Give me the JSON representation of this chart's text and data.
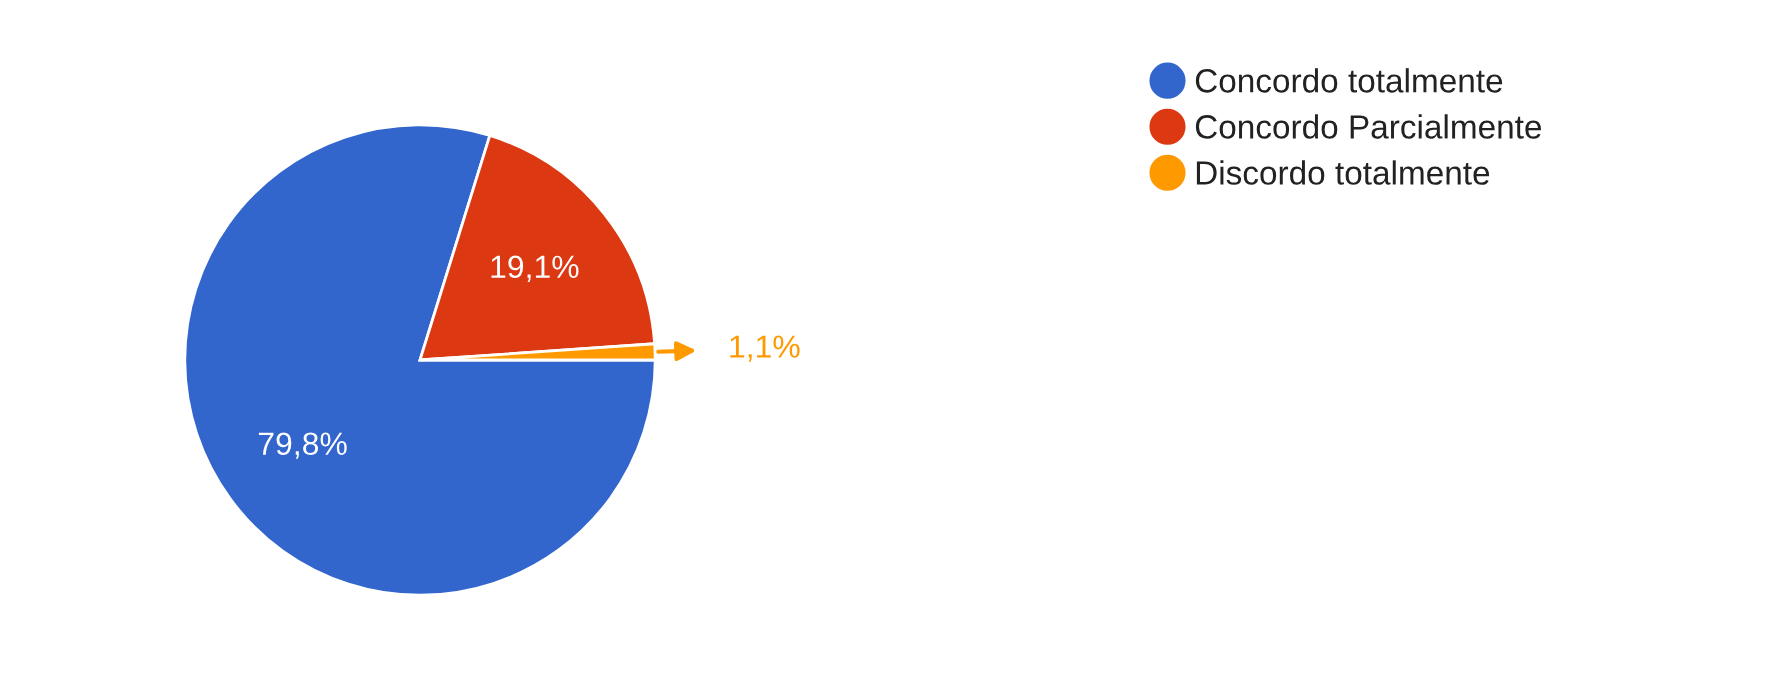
{
  "chart_data": {
    "type": "pie",
    "categories": [
      "Concordo totalmente",
      "Concordo Parcialmente",
      "Discordo totalmente"
    ],
    "values": [
      79.8,
      19.1,
      1.1
    ],
    "colors": [
      "#3366cc",
      "#dc3912",
      "#ff9900"
    ],
    "value_labels": [
      "79,8%",
      "19,1%",
      "1,1%"
    ],
    "legend": "top right"
  }
}
